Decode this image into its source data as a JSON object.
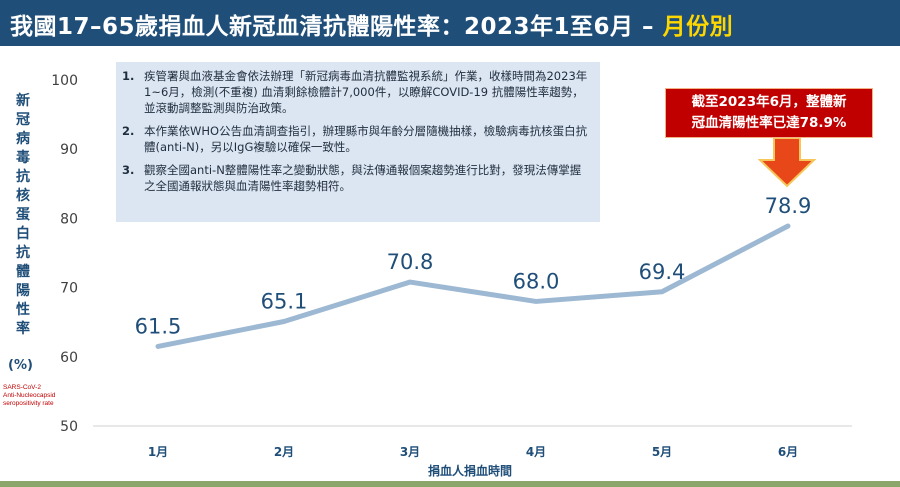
{
  "header": {
    "title_main": "我國17–65歲捐血人新冠血清抗體陽性率：2023年1至6月 – ",
    "title_highlight": "月份別"
  },
  "y_axis_label_zh": "新冠病毒抗核蛋白抗體陽性率",
  "y_axis_unit": "(%)",
  "y_axis_label_en": [
    "SARS-CoV-2",
    "Anti-Nucleocapsid",
    "seropositivity rate"
  ],
  "notes": [
    {
      "num": "1.",
      "text": "疾管署與血液基金會依法辦理「新冠病毒血清抗體監視系統」作業，收樣時間為2023年1~6月，檢測(不重複) 血清剩餘檢體計7,000件，以瞭解COVID-19 抗體陽性率趨勢，並滾動調整監測與防治政策。"
    },
    {
      "num": "2.",
      "text": "本作業依WHO公告血清調查指引，辦理縣市與年齡分層隨機抽樣，檢驗病毒抗核蛋白抗體(anti-N)，另以IgG複驗以確保一致性。"
    },
    {
      "num": "3.",
      "text": "觀察全國anti-N整體陽性率之變動狀態，與法傳通報個案趨勢進行比對，發現法傳掌握之全國通報狀態與血清陽性率趨勢相符。"
    }
  ],
  "callout": {
    "line1": "截至2023年6月，整體新",
    "line2": "冠血清陽性率已達78.9%"
  },
  "colors": {
    "header_bg": "#1f4e79",
    "highlight": "#ffd700",
    "line": "#9db8d2",
    "callout_bg": "#c00000",
    "arrow": "#e8471a"
  },
  "chart_data": {
    "type": "line",
    "categories": [
      "1月",
      "2月",
      "3月",
      "4月",
      "5月",
      "6月"
    ],
    "values": [
      61.5,
      65.1,
      70.8,
      68.0,
      69.4,
      78.9
    ],
    "data_labels": [
      "61.5",
      "65.1",
      "70.8",
      "68.0",
      "69.4",
      "78.9"
    ],
    "xlabel": "捐血人捐血時間",
    "ylim": [
      50,
      100
    ],
    "yticks": [
      50,
      60,
      70,
      80,
      90,
      100
    ],
    "grid": false
  }
}
